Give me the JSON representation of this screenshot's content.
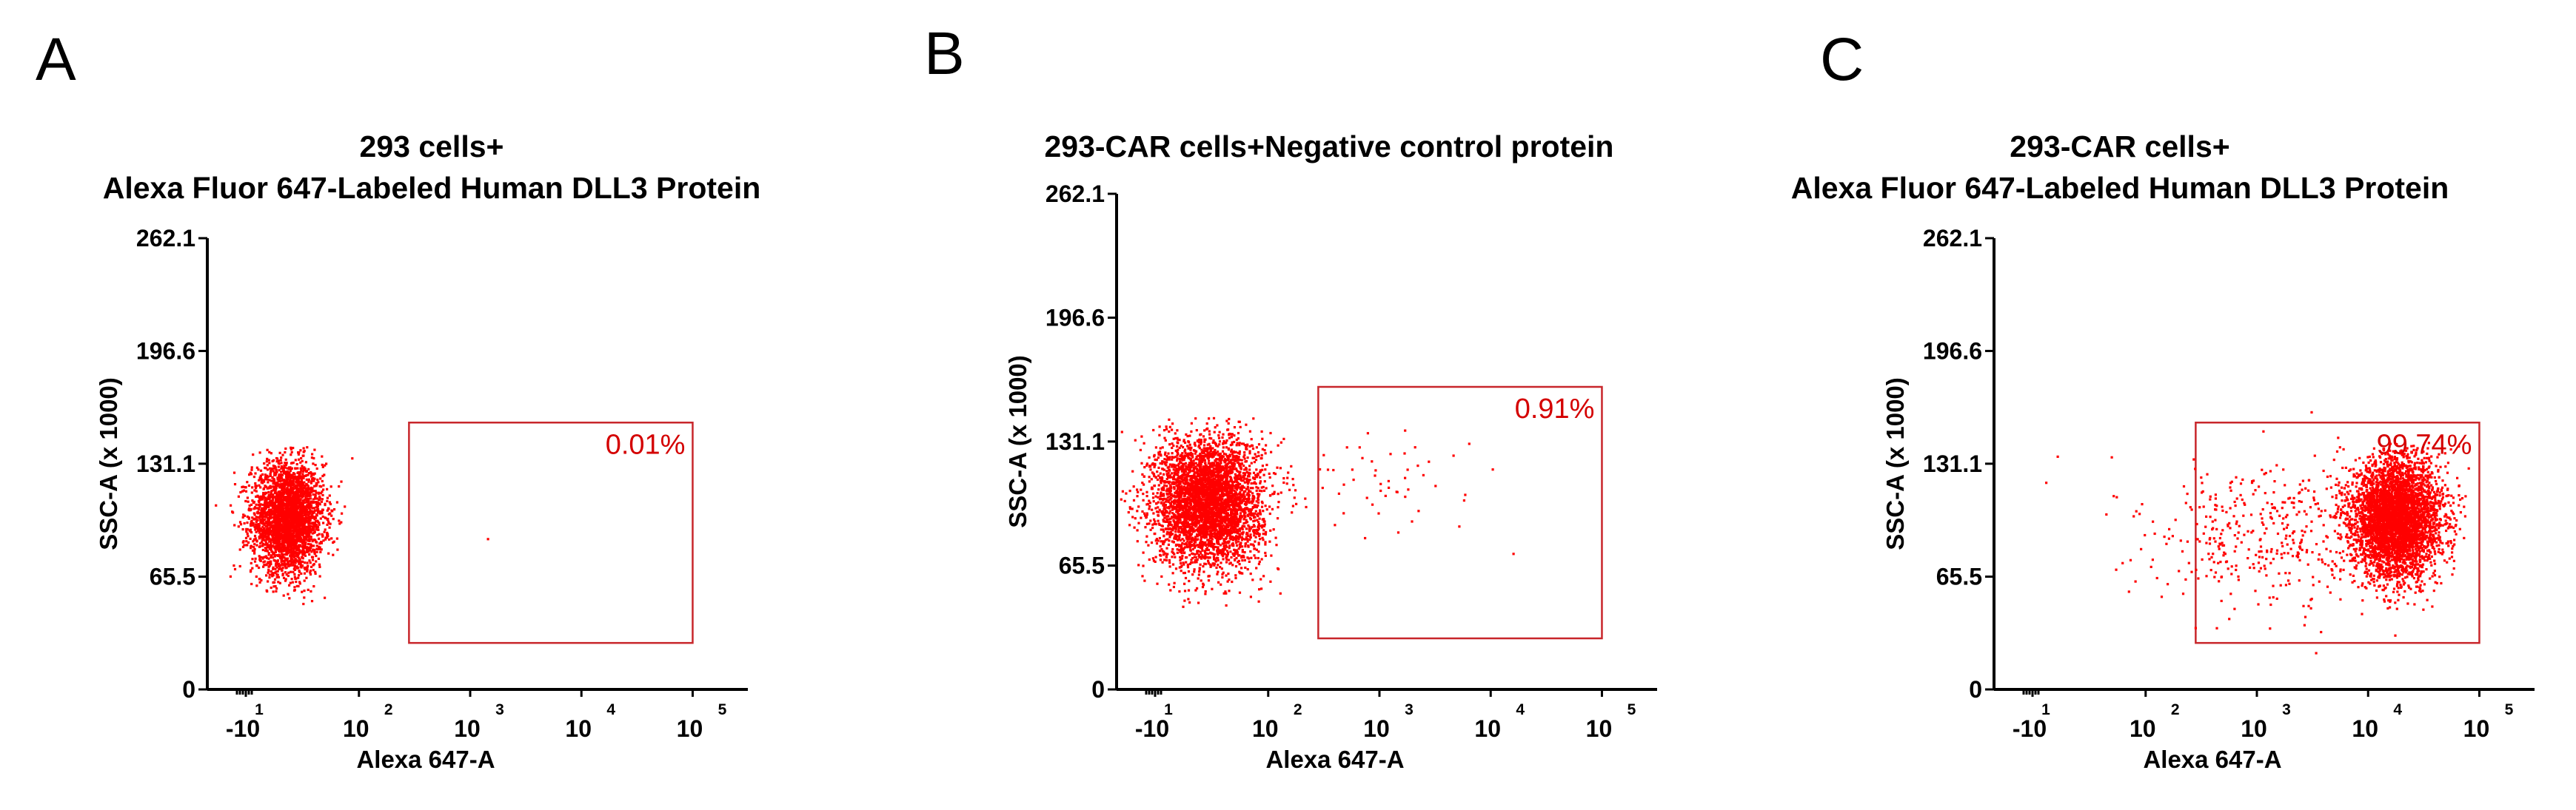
{
  "chart_data": [
    {
      "type": "scatter",
      "panel_label": "A",
      "title_lines": [
        "293 cells+",
        "Alexa Fluor 647-Labeled Human DLL3 Protein"
      ],
      "xlabel": "Alexa 647-A",
      "ylabel": "SSC-A (x 1000)",
      "x_scale": "log (biexponential)",
      "x_tick_labels": [
        {
          "base": "-10",
          "exp": "1"
        },
        {
          "base": "10",
          "exp": "2"
        },
        {
          "base": "10",
          "exp": "3"
        },
        {
          "base": "10",
          "exp": "4"
        },
        {
          "base": "10",
          "exp": "5"
        }
      ],
      "y_tick_labels": [
        "0",
        "65.5",
        "131.1",
        "196.6",
        "262.1"
      ],
      "ylim": [
        0,
        262.1
      ],
      "gate": {
        "x_range_log10": [
          2.45,
          5.0
        ],
        "y_range": [
          27,
          155
        ],
        "percent_label": "0.01%"
      },
      "populations": [
        {
          "center_log10": 1.35,
          "center_y": 100,
          "spread_log10": 0.16,
          "spread_y": 16,
          "count": 3200
        },
        {
          "center_log10": 3.15,
          "center_y": 88,
          "spread_log10": 0.0,
          "spread_y": 0.0,
          "count": 1
        }
      ]
    },
    {
      "type": "scatter",
      "panel_label": "B",
      "title_lines": [
        "293-CAR cells+Negative control protein"
      ],
      "xlabel": "Alexa 647-A",
      "ylabel": "SSC-A (x 1000)",
      "x_scale": "log (biexponential)",
      "x_tick_labels": [
        {
          "base": "-10",
          "exp": "1"
        },
        {
          "base": "10",
          "exp": "2"
        },
        {
          "base": "10",
          "exp": "3"
        },
        {
          "base": "10",
          "exp": "4"
        },
        {
          "base": "10",
          "exp": "5"
        }
      ],
      "y_tick_labels": [
        "0",
        "65.5",
        "131.1",
        "196.6",
        "262.1"
      ],
      "ylim": [
        0,
        262.1
      ],
      "gate": {
        "x_range_log10": [
          2.45,
          5.0
        ],
        "y_range": [
          27,
          160
        ],
        "percent_label": "0.91%"
      },
      "populations": [
        {
          "center_log10": 1.45,
          "center_y": 100,
          "spread_log10": 0.24,
          "spread_y": 17,
          "count": 4200
        },
        {
          "center_log10": 3.1,
          "center_y": 110,
          "spread_log10": 0.45,
          "spread_y": 15,
          "count": 55
        }
      ]
    },
    {
      "type": "scatter",
      "panel_label": "C",
      "title_lines": [
        "293-CAR cells+",
        "Alexa Fluor 647-Labeled Human DLL3 Protein"
      ],
      "xlabel": "Alexa 647-A",
      "ylabel": "SSC-A (x 1000)",
      "x_scale": "log (biexponential)",
      "x_tick_labels": [
        {
          "base": "-10",
          "exp": "1"
        },
        {
          "base": "10",
          "exp": "2"
        },
        {
          "base": "10",
          "exp": "3"
        },
        {
          "base": "10",
          "exp": "4"
        },
        {
          "base": "10",
          "exp": "5"
        }
      ],
      "y_tick_labels": [
        "0",
        "65.5",
        "131.1",
        "196.6",
        "262.1"
      ],
      "ylim": [
        0,
        262.1
      ],
      "gate": {
        "x_range_log10": [
          2.45,
          5.0
        ],
        "y_range": [
          27,
          155
        ],
        "percent_label": "99.74%"
      },
      "populations": [
        {
          "center_log10": 4.25,
          "center_y": 100,
          "spread_log10": 0.2,
          "spread_y": 17,
          "count": 4200
        },
        {
          "center_log10": 3.1,
          "center_y": 90,
          "spread_log10": 0.55,
          "spread_y": 22,
          "count": 420
        }
      ]
    }
  ]
}
